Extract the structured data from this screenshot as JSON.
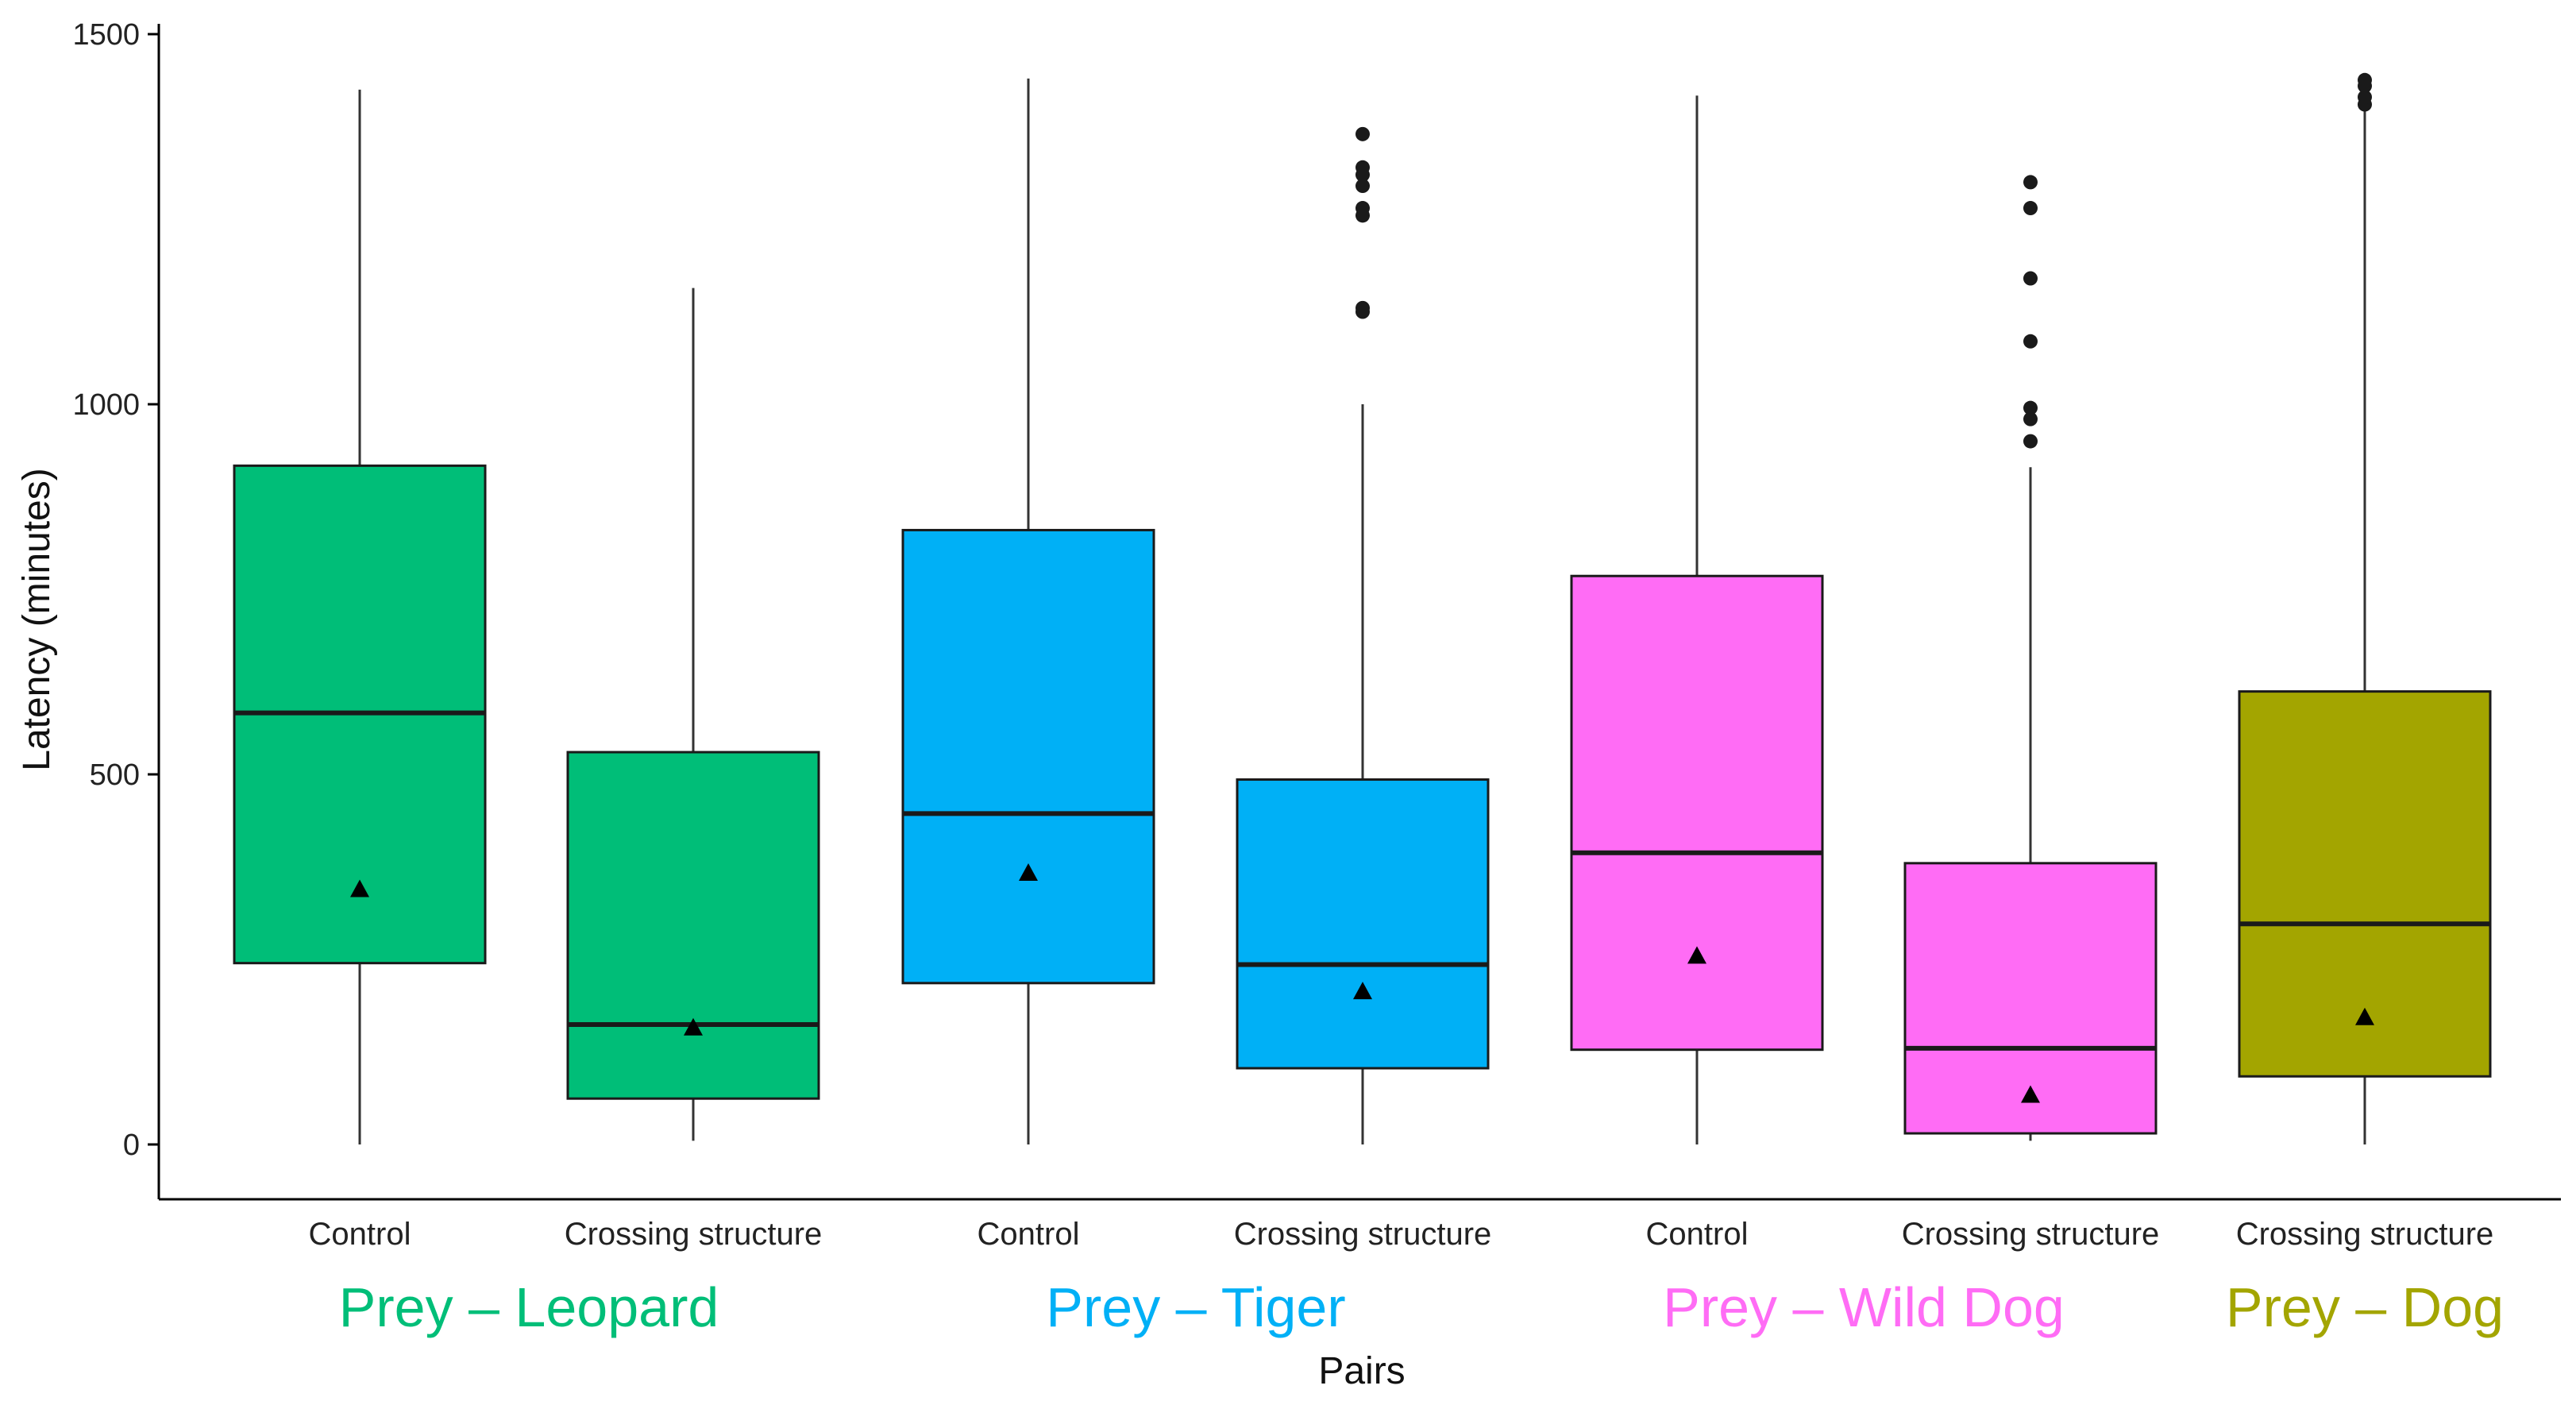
{
  "chart_data": {
    "type": "box",
    "title": "",
    "xlabel": "Pairs",
    "ylabel": "Latency (minutes)",
    "ylim": [
      -70,
      1510
    ],
    "yticks": [
      0,
      500,
      1000,
      1500
    ],
    "ytick_labels": [
      "0",
      "500",
      "1000",
      "1500"
    ],
    "groups": [
      {
        "label": "Prey – Leopard",
        "color": "#00BE78"
      },
      {
        "label": "Prey – Tiger",
        "color": "#00B0F6"
      },
      {
        "label": "Prey – Wild Dog",
        "color": "#FF6CF5"
      },
      {
        "label": "Prey – Dog",
        "color": "#A3A500"
      }
    ],
    "boxes": [
      {
        "category": "Control",
        "group": 0,
        "whisker_low": 0,
        "q1": 245,
        "median": 583,
        "q3": 917,
        "whisker_high": 1425,
        "mean": 345,
        "outliers": []
      },
      {
        "category": "Crossing structure",
        "group": 0,
        "whisker_low": 5,
        "q1": 62,
        "median": 162,
        "q3": 530,
        "whisker_high": 1157,
        "mean": 158,
        "outliers": []
      },
      {
        "category": "Control",
        "group": 1,
        "whisker_low": 0,
        "q1": 218,
        "median": 447,
        "q3": 830,
        "whisker_high": 1440,
        "mean": 367,
        "outliers": []
      },
      {
        "category": "Crossing structure",
        "group": 1,
        "whisker_low": 0,
        "q1": 103,
        "median": 243,
        "q3": 493,
        "whisker_high": 1000,
        "mean": 207,
        "outliers": [
          1125,
          1130,
          1255,
          1265,
          1295,
          1310,
          1320,
          1365
        ]
      },
      {
        "category": "Control",
        "group": 2,
        "whisker_low": 0,
        "q1": 128,
        "median": 394,
        "q3": 768,
        "whisker_high": 1417,
        "mean": 255,
        "outliers": []
      },
      {
        "category": "Crossing structure",
        "group": 2,
        "whisker_low": 5,
        "q1": 15,
        "median": 130,
        "q3": 380,
        "whisker_high": 915,
        "mean": 67,
        "outliers": [
          950,
          980,
          995,
          1085,
          1170,
          1265,
          1300
        ]
      },
      {
        "category": "Crossing structure",
        "group": 3,
        "whisker_low": 0,
        "q1": 92,
        "median": 298,
        "q3": 612,
        "whisker_high": 1398,
        "mean": 172,
        "outliers": [
          1405,
          1415,
          1430,
          1438
        ]
      }
    ]
  }
}
